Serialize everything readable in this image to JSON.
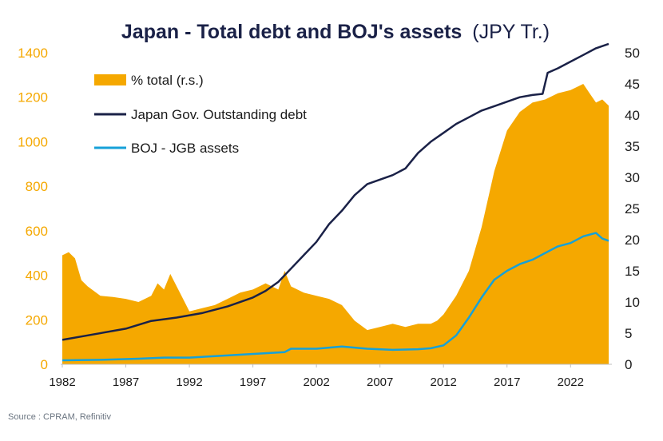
{
  "chart_data": {
    "type": "area",
    "title_bold": "Japan - Total debt and BOJ's assets",
    "title_light": "(JPY Tr.)",
    "x_ticks": [
      "1982",
      "1987",
      "1992",
      "1997",
      "2002",
      "2007",
      "2012",
      "2017",
      "2022"
    ],
    "y_left_ticks": [
      "0",
      "200",
      "400",
      "600",
      "800",
      "1000",
      "1200",
      "1400"
    ],
    "y_right_ticks": [
      "0",
      "5",
      "10",
      "15",
      "20",
      "25",
      "30",
      "35",
      "40",
      "45",
      "50"
    ],
    "ylim_left": [
      0,
      1400
    ],
    "ylim_right": [
      0,
      50
    ],
    "xlim": [
      1982,
      2025
    ],
    "legend_placement": "top-left",
    "grid": false,
    "series": [
      {
        "name": "% total (r.s.)",
        "kind": "area",
        "axis": "right",
        "color": "#f5a800",
        "points": [
          [
            1982.0,
            17.5
          ],
          [
            1982.5,
            18.0
          ],
          [
            1983.0,
            17.0
          ],
          [
            1983.5,
            13.5
          ],
          [
            1984.0,
            12.5
          ],
          [
            1985.0,
            11.0
          ],
          [
            1986.0,
            10.8
          ],
          [
            1987.0,
            10.5
          ],
          [
            1988.0,
            10.0
          ],
          [
            1989.0,
            11.0
          ],
          [
            1989.5,
            13.0
          ],
          [
            1990.0,
            12.0
          ],
          [
            1990.5,
            14.5
          ],
          [
            1991.0,
            12.5
          ],
          [
            1992.0,
            8.5
          ],
          [
            1993.0,
            9.0
          ],
          [
            1994.0,
            9.5
          ],
          [
            1995.0,
            10.5
          ],
          [
            1996.0,
            11.5
          ],
          [
            1997.0,
            12.0
          ],
          [
            1998.0,
            13.0
          ],
          [
            1999.0,
            12.0
          ],
          [
            1999.5,
            15.0
          ],
          [
            2000.0,
            12.5
          ],
          [
            2001.0,
            11.5
          ],
          [
            2002.0,
            11.0
          ],
          [
            2003.0,
            10.5
          ],
          [
            2004.0,
            9.5
          ],
          [
            2005.0,
            7.0
          ],
          [
            2006.0,
            5.5
          ],
          [
            2007.0,
            6.0
          ],
          [
            2008.0,
            6.5
          ],
          [
            2009.0,
            6.0
          ],
          [
            2010.0,
            6.5
          ],
          [
            2011.0,
            6.5
          ],
          [
            2011.5,
            7.0
          ],
          [
            2012.0,
            8.0
          ],
          [
            2013.0,
            11.0
          ],
          [
            2014.0,
            15.0
          ],
          [
            2015.0,
            22.0
          ],
          [
            2016.0,
            31.0
          ],
          [
            2017.0,
            37.5
          ],
          [
            2018.0,
            40.5
          ],
          [
            2019.0,
            42.0
          ],
          [
            2020.0,
            42.5
          ],
          [
            2021.0,
            43.5
          ],
          [
            2022.0,
            44.0
          ],
          [
            2023.0,
            45.0
          ],
          [
            2023.5,
            43.5
          ],
          [
            2024.0,
            42.0
          ],
          [
            2024.5,
            42.5
          ],
          [
            2025.0,
            41.5
          ]
        ]
      },
      {
        "name": "Japan Gov. Outstanding debt",
        "kind": "line",
        "axis": "left",
        "color": "#1a2147",
        "points": [
          [
            1982.0,
            110
          ],
          [
            1984.0,
            130
          ],
          [
            1987.0,
            160
          ],
          [
            1989.0,
            195
          ],
          [
            1991.0,
            210
          ],
          [
            1993.0,
            230
          ],
          [
            1995.0,
            260
          ],
          [
            1997.0,
            300
          ],
          [
            1998.0,
            330
          ],
          [
            1999.0,
            370
          ],
          [
            2000.0,
            430
          ],
          [
            2001.0,
            490
          ],
          [
            2002.0,
            550
          ],
          [
            2003.0,
            630
          ],
          [
            2004.0,
            690
          ],
          [
            2005.0,
            760
          ],
          [
            2006.0,
            810
          ],
          [
            2007.0,
            830
          ],
          [
            2008.0,
            850
          ],
          [
            2009.0,
            880
          ],
          [
            2010.0,
            950
          ],
          [
            2011.0,
            1000
          ],
          [
            2012.0,
            1040
          ],
          [
            2013.0,
            1080
          ],
          [
            2014.0,
            1110
          ],
          [
            2015.0,
            1140
          ],
          [
            2016.0,
            1160
          ],
          [
            2017.0,
            1180
          ],
          [
            2018.0,
            1200
          ],
          [
            2019.0,
            1210
          ],
          [
            2019.8,
            1215
          ],
          [
            2020.2,
            1310
          ],
          [
            2021.0,
            1330
          ],
          [
            2022.0,
            1360
          ],
          [
            2023.0,
            1390
          ],
          [
            2024.0,
            1420
          ],
          [
            2025.0,
            1440
          ]
        ]
      },
      {
        "name": "BOJ - JGB assets",
        "kind": "line",
        "axis": "left",
        "color": "#16a1d8",
        "points": [
          [
            1982.0,
            18
          ],
          [
            1985.0,
            20
          ],
          [
            1988.0,
            25
          ],
          [
            1990.0,
            30
          ],
          [
            1992.0,
            30
          ],
          [
            1995.0,
            40
          ],
          [
            1998.0,
            50
          ],
          [
            1999.5,
            55
          ],
          [
            2000.0,
            70
          ],
          [
            2002.0,
            70
          ],
          [
            2004.0,
            80
          ],
          [
            2006.0,
            70
          ],
          [
            2008.0,
            65
          ],
          [
            2010.0,
            68
          ],
          [
            2011.0,
            72
          ],
          [
            2012.0,
            85
          ],
          [
            2013.0,
            130
          ],
          [
            2014.0,
            210
          ],
          [
            2015.0,
            300
          ],
          [
            2016.0,
            380
          ],
          [
            2017.0,
            420
          ],
          [
            2018.0,
            450
          ],
          [
            2019.0,
            470
          ],
          [
            2020.0,
            500
          ],
          [
            2021.0,
            530
          ],
          [
            2022.0,
            545
          ],
          [
            2023.0,
            575
          ],
          [
            2024.0,
            590
          ],
          [
            2024.5,
            565
          ],
          [
            2025.0,
            555
          ]
        ]
      }
    ]
  },
  "footer": {
    "source": "Source : CPRAM, Refinitiv"
  }
}
